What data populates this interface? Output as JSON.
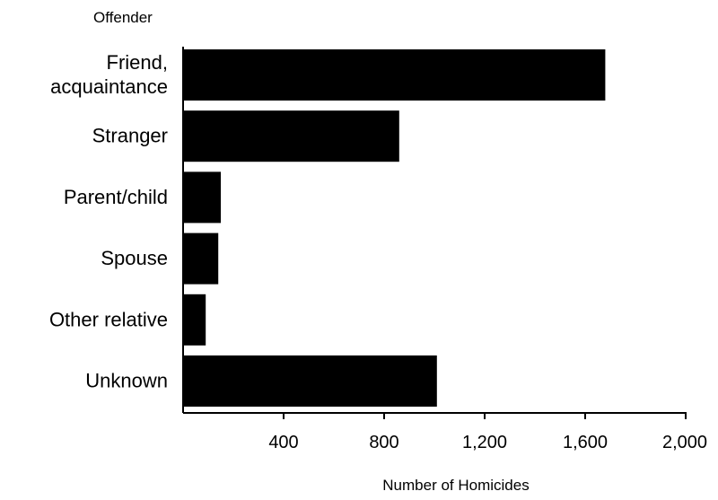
{
  "chart_data": {
    "type": "bar",
    "orientation": "horizontal",
    "title": "",
    "ylabel": "Offender",
    "xlabel": "Number of Homicides",
    "categories": [
      [
        "Friend,",
        "acquaintance"
      ],
      [
        "Stranger"
      ],
      [
        "Parent/child"
      ],
      [
        "Spouse"
      ],
      [
        "Other relative"
      ],
      [
        "Unknown"
      ]
    ],
    "values": [
      1680,
      860,
      150,
      140,
      90,
      1010
    ],
    "xlim": [
      0,
      2000
    ],
    "xticks": [
      400,
      800,
      1200,
      1600,
      2000
    ],
    "xtick_labels": [
      "400",
      "800",
      "1,200",
      "1,600",
      "2,000"
    ],
    "grid": false,
    "legend": "none",
    "bar_color": "#000000",
    "axis_color": "#000000"
  }
}
